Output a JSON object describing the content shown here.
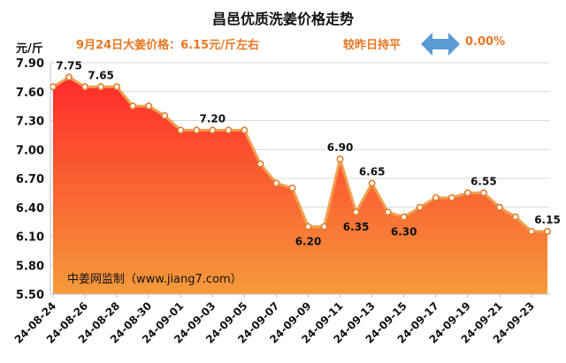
{
  "header": {
    "title": "昌邑优质洗姜价格走势",
    "subtitle": "9月24日大姜价格：6.15元/斤左右",
    "change_text": "较昨日持平",
    "change_value": "0.00%",
    "arrow_icon": "double-arrow-icon"
  },
  "unit": "元/斤",
  "watermark": "中姜网监制（www.jiang7.com）",
  "colors": {
    "title": "#111111",
    "accent": "#e87722",
    "arrow": "#5b9bd5",
    "area_top": "#ff2a2a",
    "area_bottom": "#f59a3a",
    "line": "#f0a050",
    "marker": "#e07c2a"
  },
  "chart_data": {
    "type": "area",
    "title": "昌邑优质洗姜价格走势",
    "ylabel": "元/斤",
    "ylim": [
      5.5,
      7.9
    ],
    "yticks": [
      "7.90",
      "7.60",
      "7.30",
      "7.00",
      "6.70",
      "6.40",
      "6.10",
      "5.80",
      "5.50"
    ],
    "grid": true,
    "x": [
      "24-08-24",
      "24-08-25",
      "24-08-26",
      "24-08-27",
      "24-08-28",
      "24-08-29",
      "24-08-30",
      "24-08-31",
      "24-09-01",
      "24-09-02",
      "24-09-03",
      "24-09-04",
      "24-09-05",
      "24-09-06",
      "24-09-07",
      "24-09-08",
      "24-09-09",
      "24-09-10",
      "24-09-11",
      "24-09-12",
      "24-09-13",
      "24-09-14",
      "24-09-15",
      "24-09-16",
      "24-09-17",
      "24-09-18",
      "24-09-19",
      "24-09-20",
      "24-09-21",
      "24-09-22",
      "24-09-23",
      "24-09-24"
    ],
    "xtick_labels": [
      "24-08-24",
      "24-08-26",
      "24-08-28",
      "24-08-30",
      "24-09-01",
      "24-09-03",
      "24-09-05",
      "24-09-07",
      "24-09-09",
      "24-09-11",
      "24-09-13",
      "24-09-15",
      "24-09-17",
      "24-09-19",
      "24-09-21",
      "24-09-23"
    ],
    "series": [
      {
        "values": [
          7.65,
          7.75,
          7.65,
          7.65,
          7.65,
          7.45,
          7.45,
          7.35,
          7.2,
          7.2,
          7.2,
          7.2,
          7.2,
          6.85,
          6.65,
          6.6,
          6.2,
          6.2,
          6.9,
          6.35,
          6.65,
          6.35,
          6.3,
          6.4,
          6.5,
          6.5,
          6.55,
          6.55,
          6.4,
          6.3,
          6.15,
          6.15
        ]
      }
    ],
    "data_labels": [
      {
        "index": 1,
        "text": "7.75"
      },
      {
        "index": 3,
        "text": "7.65"
      },
      {
        "index": 10,
        "text": "7.20"
      },
      {
        "index": 16,
        "text": "6.20"
      },
      {
        "index": 18,
        "text": "6.90"
      },
      {
        "index": 19,
        "text": "6.35"
      },
      {
        "index": 20,
        "text": "6.65"
      },
      {
        "index": 22,
        "text": "6.30"
      },
      {
        "index": 27,
        "text": "6.55"
      },
      {
        "index": 31,
        "text": "6.15"
      }
    ]
  }
}
